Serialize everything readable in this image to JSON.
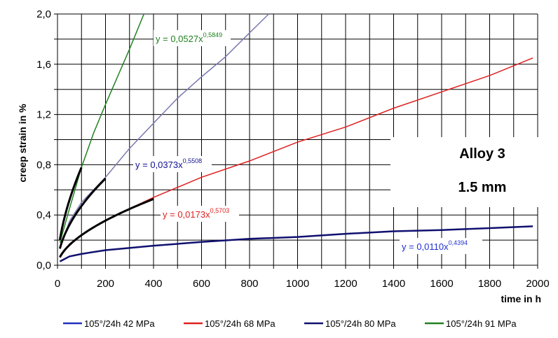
{
  "chart_data": {
    "type": "line",
    "title": "",
    "xlabel": "time in h",
    "ylabel": "creep strain in %",
    "xlim": [
      0,
      2000
    ],
    "ylim": [
      0,
      2.0
    ],
    "x_ticks": [
      "0",
      "200",
      "400",
      "600",
      "800",
      "1000",
      "1200",
      "1400",
      "1600",
      "1800",
      "2000"
    ],
    "y_ticks": [
      "0,0",
      "0,4",
      "0,8",
      "1,2",
      "1,6",
      "2,0"
    ],
    "grid": true,
    "legend_placement": "bottom",
    "annotation_box": {
      "line1": "Alloy 3",
      "line2": "1.5 mm"
    },
    "legend": [
      {
        "label": "105°/24h 42 MPa",
        "color": "#2030c0"
      },
      {
        "label": "105°/24h 68 MPa",
        "color": "#e02020"
      },
      {
        "label": "105°/24h 80 MPa",
        "color": "#101070"
      },
      {
        "label": "105°/24h 91 MPa",
        "color": "#208020"
      }
    ],
    "series": [
      {
        "color": "#208020",
        "points": [
          [
            10,
            0.18
          ],
          [
            50,
            0.45
          ],
          [
            100,
            0.78
          ],
          [
            150,
            1.05
          ],
          [
            200,
            1.28
          ],
          [
            250,
            1.5
          ],
          [
            300,
            1.72
          ],
          [
            360,
            2.0
          ]
        ]
      },
      {
        "color": "#7a78b0",
        "points": [
          [
            10,
            0.13
          ],
          [
            50,
            0.35
          ],
          [
            100,
            0.5
          ],
          [
            200,
            0.7
          ],
          [
            300,
            0.93
          ],
          [
            400,
            1.13
          ],
          [
            500,
            1.33
          ],
          [
            600,
            1.5
          ],
          [
            700,
            1.66
          ],
          [
            800,
            1.85
          ],
          [
            880,
            2.0
          ]
        ]
      },
      {
        "color": "#e02020",
        "points": [
          [
            10,
            0.06
          ],
          [
            50,
            0.17
          ],
          [
            100,
            0.24
          ],
          [
            200,
            0.36
          ],
          [
            300,
            0.45
          ],
          [
            400,
            0.54
          ],
          [
            600,
            0.7
          ],
          [
            800,
            0.83
          ],
          [
            1000,
            0.98
          ],
          [
            1200,
            1.1
          ],
          [
            1400,
            1.25
          ],
          [
            1600,
            1.38
          ],
          [
            1800,
            1.51
          ],
          [
            1980,
            1.65
          ]
        ]
      },
      {
        "color": "#101070",
        "points": [
          [
            10,
            0.03
          ],
          [
            50,
            0.07
          ],
          [
            100,
            0.09
          ],
          [
            200,
            0.12
          ],
          [
            400,
            0.155
          ],
          [
            600,
            0.185
          ],
          [
            800,
            0.21
          ],
          [
            1000,
            0.225
          ],
          [
            1200,
            0.25
          ],
          [
            1400,
            0.27
          ],
          [
            1600,
            0.28
          ],
          [
            1800,
            0.295
          ],
          [
            1980,
            0.31
          ]
        ]
      }
    ],
    "fits": [
      {
        "label": "y = 0,0527x",
        "exp": "0,5849",
        "a": 0.0527,
        "b": 0.5849,
        "x_range": [
          10,
          100
        ],
        "label_color": "#208020"
      },
      {
        "label": "y = 0,0373x",
        "exp": "0,5508",
        "a": 0.0373,
        "b": 0.5508,
        "x_range": [
          10,
          200
        ],
        "label_color": "#101090"
      },
      {
        "label": "y = 0,0173x",
        "exp": "0,5703",
        "a": 0.0173,
        "b": 0.5703,
        "x_range": [
          10,
          400
        ],
        "label_color": "#e02020"
      },
      {
        "label": "y = 0,0110x",
        "exp": "0,4394",
        "a": 0.011,
        "b": 0.4394,
        "x_range": [
          10,
          2000
        ],
        "label_color": "#2030d0"
      }
    ]
  }
}
